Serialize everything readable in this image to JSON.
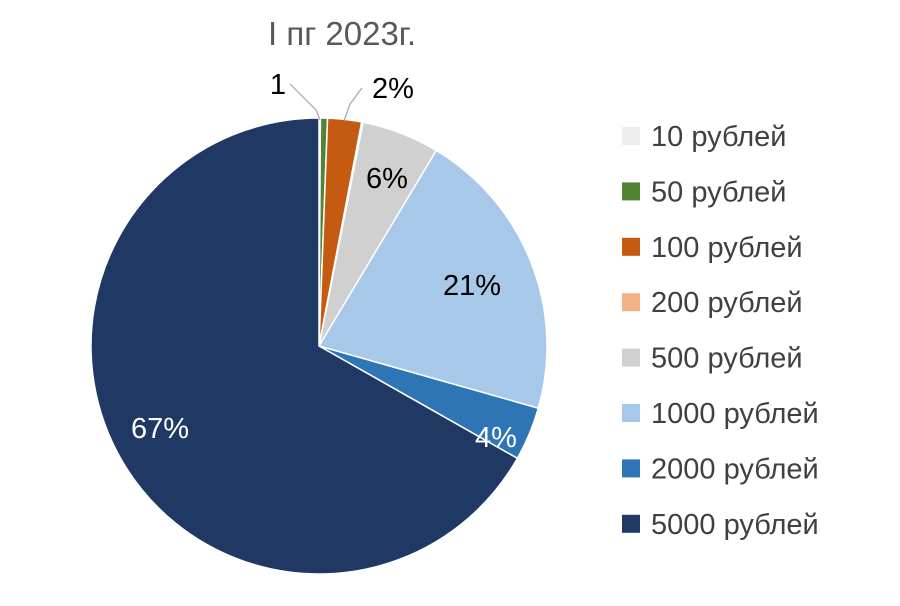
{
  "chart_data": {
    "type": "pie",
    "title": "I пг 2023г.",
    "start_angle_deg": 0,
    "direction": "clockwise",
    "legend_position": "right",
    "categories": [
      "10 рублей",
      "50 рублей",
      "100 рублей",
      "200 рублей",
      "500 рублей",
      "1000 рублей",
      "2000 рублей",
      "5000 рублей"
    ],
    "values": [
      0.1,
      0.5,
      2.4,
      0.1,
      5.5,
      20.8,
      3.8,
      66.8
    ],
    "colors": [
      "#eeeeee",
      "#548235",
      "#c55a11",
      "#f4b183",
      "#d0d0d0",
      "#a8c8ea",
      "#2e75b6",
      "#1f3864"
    ],
    "data_labels": [
      "",
      "1",
      "2%",
      "",
      "6%",
      "21%",
      "4%",
      "67%"
    ],
    "data_label_colors": [
      "",
      "#000000",
      "#000000",
      "",
      "#000000",
      "#000000",
      "#ffffff",
      "#ffffff"
    ]
  }
}
